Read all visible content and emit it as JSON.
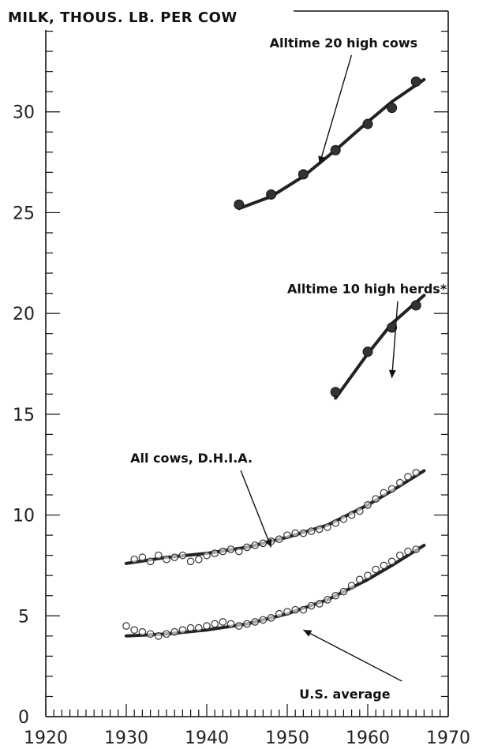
{
  "chart_data": {
    "type": "line",
    "title": "",
    "ylabel": "MILK, THOUS. LB. PER COW",
    "xlabel": "",
    "xlim": [
      1920,
      1970
    ],
    "ylim": [
      0,
      35
    ],
    "x_ticks": [
      "1920",
      "1930",
      "1940",
      "1950",
      "1960",
      "1970"
    ],
    "y_ticks": [
      "0",
      "5",
      "10",
      "15",
      "20",
      "25",
      "30"
    ],
    "grid": false,
    "series": [
      {
        "name": "Alltime 20 high cows",
        "marker": "filled",
        "points": [
          [
            1944,
            25.4
          ],
          [
            1948,
            25.9
          ],
          [
            1952,
            26.9
          ],
          [
            1956,
            28.1
          ],
          [
            1960,
            29.4
          ],
          [
            1963,
            30.2
          ],
          [
            1966,
            31.5
          ]
        ],
        "fit": [
          [
            1944,
            25.2
          ],
          [
            1948,
            25.8
          ],
          [
            1952,
            26.8
          ],
          [
            1956,
            28.1
          ],
          [
            1960,
            29.5
          ],
          [
            1963,
            30.5
          ],
          [
            1967,
            31.6
          ]
        ]
      },
      {
        "name": "Alltime 10 high herds*",
        "marker": "filled",
        "points": [
          [
            1956,
            16.1
          ],
          [
            1960,
            18.1
          ],
          [
            1963,
            19.3
          ],
          [
            1966,
            20.4
          ]
        ],
        "fit": [
          [
            1956,
            15.8
          ],
          [
            1960,
            18.0
          ],
          [
            1963,
            19.5
          ],
          [
            1967,
            20.9
          ]
        ]
      },
      {
        "name": "All cows, D.H.I.A.",
        "marker": "open",
        "points": [
          [
            1931,
            7.8
          ],
          [
            1932,
            7.9
          ],
          [
            1933,
            7.7
          ],
          [
            1934,
            8.0
          ],
          [
            1935,
            7.8
          ],
          [
            1936,
            7.9
          ],
          [
            1937,
            8.0
          ],
          [
            1938,
            7.7
          ],
          [
            1939,
            7.8
          ],
          [
            1940,
            8.0
          ],
          [
            1941,
            8.1
          ],
          [
            1942,
            8.2
          ],
          [
            1943,
            8.3
          ],
          [
            1944,
            8.2
          ],
          [
            1945,
            8.4
          ],
          [
            1946,
            8.5
          ],
          [
            1947,
            8.6
          ],
          [
            1948,
            8.7
          ],
          [
            1949,
            8.8
          ],
          [
            1950,
            9.0
          ],
          [
            1951,
            9.1
          ],
          [
            1952,
            9.1
          ],
          [
            1953,
            9.2
          ],
          [
            1954,
            9.3
          ],
          [
            1955,
            9.4
          ],
          [
            1956,
            9.6
          ],
          [
            1957,
            9.8
          ],
          [
            1958,
            10.0
          ],
          [
            1959,
            10.2
          ],
          [
            1960,
            10.5
          ],
          [
            1961,
            10.8
          ],
          [
            1962,
            11.1
          ],
          [
            1963,
            11.3
          ],
          [
            1964,
            11.6
          ],
          [
            1965,
            11.9
          ],
          [
            1966,
            12.1
          ]
        ],
        "fit": [
          [
            1930,
            7.6
          ],
          [
            1935,
            7.9
          ],
          [
            1940,
            8.1
          ],
          [
            1945,
            8.4
          ],
          [
            1950,
            8.9
          ],
          [
            1955,
            9.5
          ],
          [
            1960,
            10.5
          ],
          [
            1963,
            11.2
          ],
          [
            1967,
            12.2
          ]
        ]
      },
      {
        "name": "U.S. average",
        "marker": "open",
        "points": [
          [
            1930,
            4.5
          ],
          [
            1931,
            4.3
          ],
          [
            1932,
            4.2
          ],
          [
            1933,
            4.1
          ],
          [
            1934,
            4.0
          ],
          [
            1935,
            4.1
          ],
          [
            1936,
            4.2
          ],
          [
            1937,
            4.3
          ],
          [
            1938,
            4.4
          ],
          [
            1939,
            4.4
          ],
          [
            1940,
            4.5
          ],
          [
            1941,
            4.6
          ],
          [
            1942,
            4.7
          ],
          [
            1943,
            4.6
          ],
          [
            1944,
            4.5
          ],
          [
            1945,
            4.6
          ],
          [
            1946,
            4.7
          ],
          [
            1947,
            4.8
          ],
          [
            1948,
            4.9
          ],
          [
            1949,
            5.1
          ],
          [
            1950,
            5.2
          ],
          [
            1951,
            5.3
          ],
          [
            1952,
            5.3
          ],
          [
            1953,
            5.5
          ],
          [
            1954,
            5.6
          ],
          [
            1955,
            5.8
          ],
          [
            1956,
            6.0
          ],
          [
            1957,
            6.2
          ],
          [
            1958,
            6.5
          ],
          [
            1959,
            6.8
          ],
          [
            1960,
            7.0
          ],
          [
            1961,
            7.3
          ],
          [
            1962,
            7.5
          ],
          [
            1963,
            7.7
          ],
          [
            1964,
            8.0
          ],
          [
            1965,
            8.2
          ],
          [
            1966,
            8.3
          ]
        ],
        "fit": [
          [
            1930,
            4.0
          ],
          [
            1935,
            4.1
          ],
          [
            1940,
            4.3
          ],
          [
            1945,
            4.6
          ],
          [
            1950,
            5.1
          ],
          [
            1955,
            5.8
          ],
          [
            1960,
            6.8
          ],
          [
            1963,
            7.5
          ],
          [
            1967,
            8.5
          ]
        ]
      }
    ],
    "annotations": [
      {
        "text": "Alltime 20 high cows",
        "series": "Alltime 20 high cows",
        "at": [
          1954,
          27.4
        ],
        "label_at": [
          1957,
          33.2
        ],
        "anchor": "middle"
      },
      {
        "text": "Alltime 10 high herds*",
        "series": "Alltime 10 high herds*",
        "at": [
          1963,
          16.8
        ],
        "label_at": [
          1950,
          21.0
        ],
        "anchor": "start"
      },
      {
        "text": "All cows, D.H.I.A.",
        "series": "All cows, D.H.I.A.",
        "at": [
          1948,
          8.4
        ],
        "label_at": [
          1930.5,
          12.6
        ],
        "anchor": "start"
      },
      {
        "text": "U.S. average",
        "series": "U.S. average",
        "at": [
          1952,
          4.3
        ],
        "label_at": [
          1951.5,
          0.9
        ],
        "anchor": "start"
      }
    ]
  }
}
